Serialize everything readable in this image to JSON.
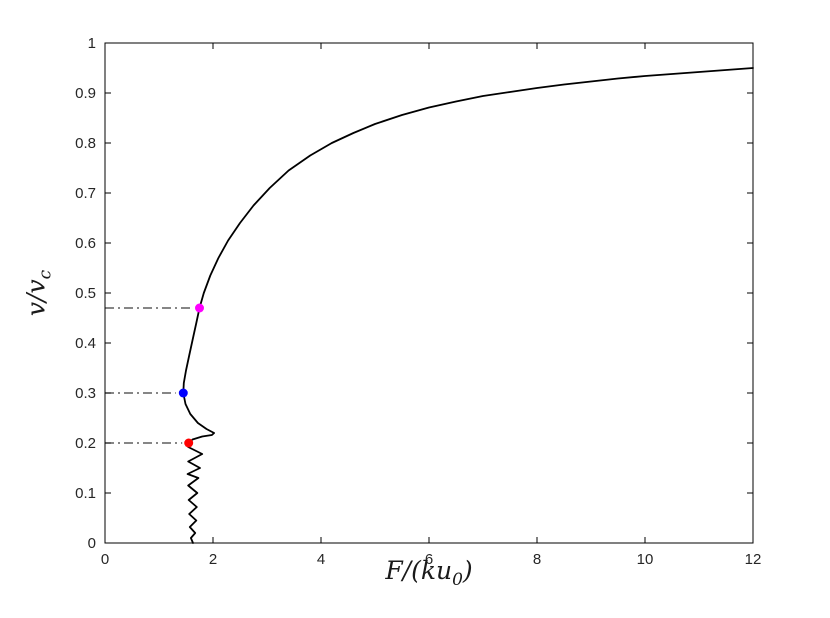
{
  "figure": {
    "background": "#ffffff",
    "axis_color": "#000000",
    "tick_label_color": "#262626"
  },
  "chart_data": {
    "type": "line",
    "title": "",
    "xlabel": "F/(ku_0)",
    "ylabel": "v/v_c",
    "xlim": [
      0,
      12
    ],
    "ylim": [
      0,
      1
    ],
    "grid": false,
    "legend": "none",
    "xticks": {
      "values": [
        0,
        2,
        4,
        6,
        8,
        10,
        12
      ],
      "labels": [
        "0",
        "2",
        "4",
        "6",
        "8",
        "10",
        "12"
      ]
    },
    "yticks": {
      "values": [
        0,
        0.1,
        0.2,
        0.3,
        0.4,
        0.5,
        0.6,
        0.7,
        0.8,
        0.9,
        1
      ],
      "labels": [
        "0",
        "0.1",
        "0.2",
        "0.3",
        "0.4",
        "0.5",
        "0.6",
        "0.7",
        "0.8",
        "0.9",
        "1"
      ]
    },
    "series": [
      {
        "name": "force-velocity-curve",
        "color": "#000000",
        "width": 1.8,
        "points": [
          [
            1.63,
            0.0
          ],
          [
            1.59,
            0.01
          ],
          [
            1.67,
            0.02
          ],
          [
            1.57,
            0.032
          ],
          [
            1.69,
            0.045
          ],
          [
            1.56,
            0.058
          ],
          [
            1.7,
            0.072
          ],
          [
            1.55,
            0.086
          ],
          [
            1.71,
            0.1
          ],
          [
            1.54,
            0.115
          ],
          [
            1.73,
            0.13
          ],
          [
            1.53,
            0.138
          ],
          [
            1.76,
            0.15
          ],
          [
            1.54,
            0.163
          ],
          [
            1.8,
            0.178
          ],
          [
            1.54,
            0.192
          ],
          [
            1.55,
            0.2
          ],
          [
            1.62,
            0.207
          ],
          [
            1.8,
            0.213
          ],
          [
            1.98,
            0.216
          ],
          [
            2.02,
            0.22
          ],
          [
            1.88,
            0.228
          ],
          [
            1.72,
            0.24
          ],
          [
            1.58,
            0.258
          ],
          [
            1.49,
            0.278
          ],
          [
            1.45,
            0.3
          ],
          [
            1.46,
            0.32
          ],
          [
            1.5,
            0.345
          ],
          [
            1.56,
            0.375
          ],
          [
            1.63,
            0.41
          ],
          [
            1.69,
            0.44
          ],
          [
            1.75,
            0.47
          ],
          [
            1.83,
            0.5
          ],
          [
            1.95,
            0.535
          ],
          [
            2.1,
            0.57
          ],
          [
            2.28,
            0.605
          ],
          [
            2.5,
            0.64
          ],
          [
            2.75,
            0.675
          ],
          [
            3.05,
            0.71
          ],
          [
            3.4,
            0.745
          ],
          [
            3.8,
            0.775
          ],
          [
            4.2,
            0.8
          ],
          [
            4.6,
            0.82
          ],
          [
            5.0,
            0.838
          ],
          [
            5.5,
            0.856
          ],
          [
            6.0,
            0.871
          ],
          [
            6.5,
            0.883
          ],
          [
            7.0,
            0.894
          ],
          [
            7.5,
            0.902
          ],
          [
            8.0,
            0.91
          ],
          [
            8.5,
            0.917
          ],
          [
            9.0,
            0.923
          ],
          [
            9.5,
            0.929
          ],
          [
            10.0,
            0.934
          ],
          [
            10.5,
            0.938
          ],
          [
            11.0,
            0.942
          ],
          [
            11.5,
            0.946
          ],
          [
            12.0,
            0.95
          ]
        ]
      }
    ],
    "markers": [
      {
        "name": "red-point",
        "color": "#ff0000",
        "x": 1.55,
        "y": 0.2
      },
      {
        "name": "blue-point",
        "color": "#0000ff",
        "x": 1.45,
        "y": 0.3
      },
      {
        "name": "magenta-point",
        "color": "#ff00ff",
        "x": 1.75,
        "y": 0.47
      }
    ],
    "guide_lines": [
      {
        "y": 0.2,
        "x_start": 0,
        "x_end": 1.43,
        "color": "#3d3d3d",
        "style": "dash-dot"
      },
      {
        "y": 0.3,
        "x_start": 0,
        "x_end": 1.31,
        "color": "#3d3d3d",
        "style": "dash-dot"
      },
      {
        "y": 0.47,
        "x_start": 0,
        "x_end": 1.61,
        "color": "#3d3d3d",
        "style": "dash-dot"
      }
    ]
  }
}
